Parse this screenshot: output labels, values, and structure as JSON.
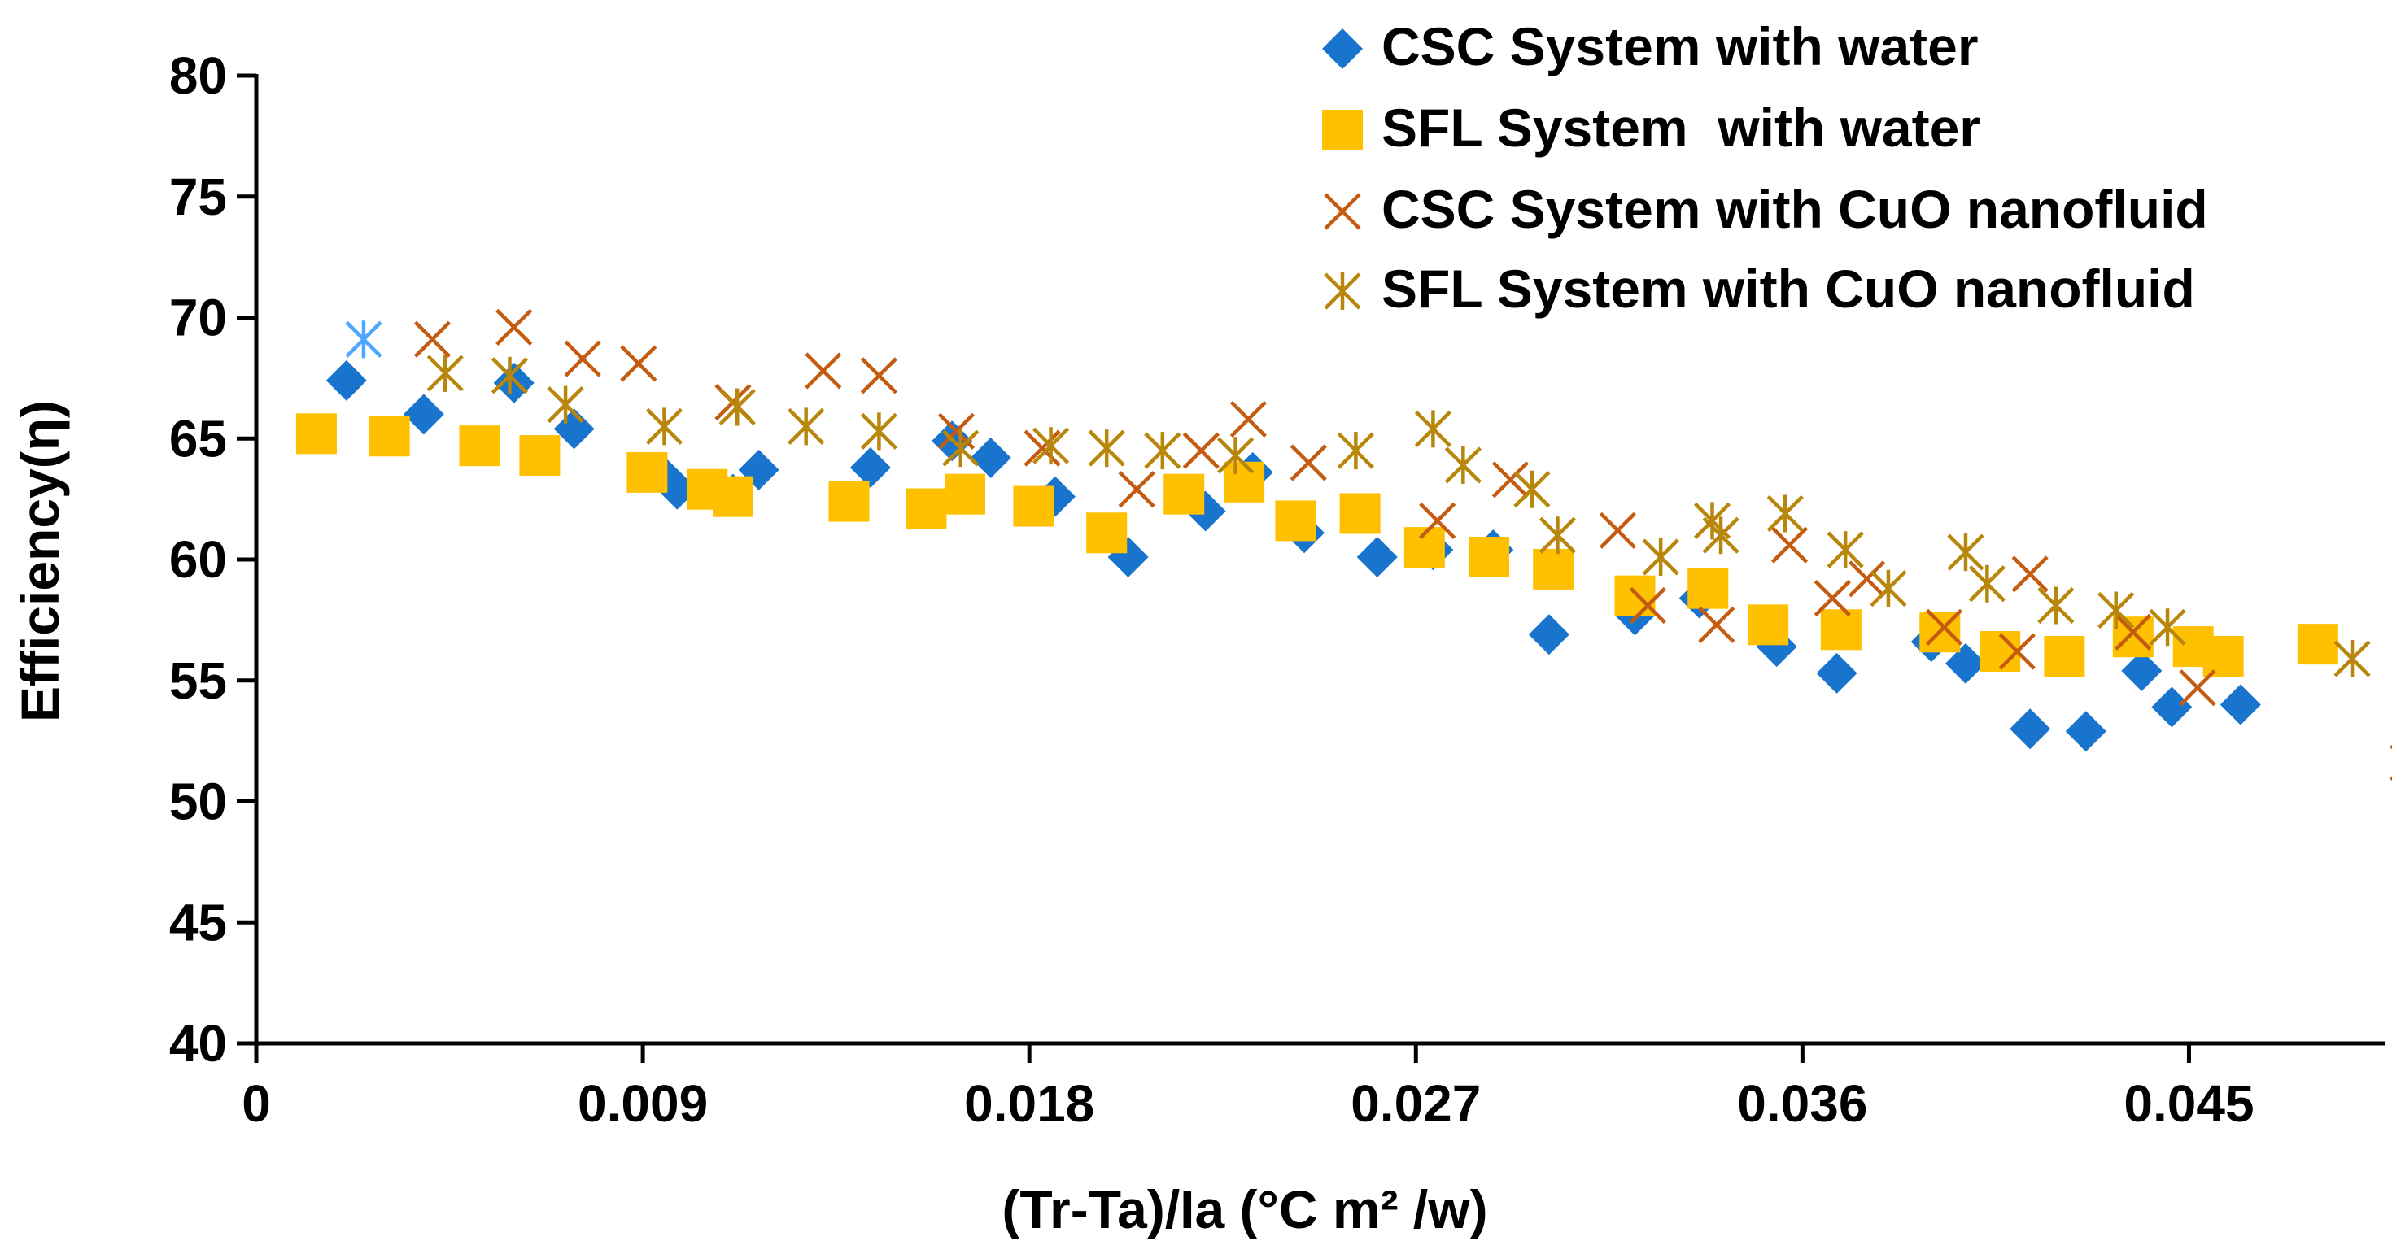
{
  "chart_data": {
    "type": "scatter",
    "title": "",
    "xlabel": "(Tr-Ta)/Ia (°C m² /w)",
    "ylabel": "Efficiency(η)",
    "xlim": [
      0,
      0.0495
    ],
    "ylim": [
      40,
      80
    ],
    "xticks": [
      0,
      0.009,
      0.018,
      0.027,
      0.036,
      0.045
    ],
    "xtick_labels": [
      "0",
      "0.009",
      "0.018",
      "0.027",
      "0.036",
      "0.045"
    ],
    "yticks": [
      40,
      45,
      50,
      55,
      60,
      65,
      70,
      75,
      80
    ],
    "ytick_labels": [
      "40",
      "45",
      "50",
      "55",
      "60",
      "65",
      "70",
      "75",
      "80"
    ],
    "grid": false,
    "legend_position": "top-right",
    "series": [
      {
        "name": "CSC System with water",
        "marker": "diamond",
        "color": "#1874CD",
        "points": [
          [
            0.0021,
            67.4
          ],
          [
            0.0039,
            66.0
          ],
          [
            0.006,
            67.3
          ],
          [
            0.0074,
            65.4
          ],
          [
            0.0094,
            63.6
          ],
          [
            0.0098,
            62.9
          ],
          [
            0.0111,
            62.7
          ],
          [
            0.0117,
            63.7
          ],
          [
            0.0143,
            63.8
          ],
          [
            0.0162,
            64.9
          ],
          [
            0.0171,
            64.2
          ],
          [
            0.0186,
            62.6
          ],
          [
            0.0203,
            60.1
          ],
          [
            0.0221,
            62.0
          ],
          [
            0.0232,
            63.6
          ],
          [
            0.0244,
            61.1
          ],
          [
            0.0261,
            60.1
          ],
          [
            0.0274,
            60.4
          ],
          [
            0.0288,
            60.4
          ],
          [
            0.0301,
            56.9
          ],
          [
            0.0321,
            57.7
          ],
          [
            0.0336,
            58.4
          ],
          [
            0.0354,
            56.4
          ],
          [
            0.0368,
            55.3
          ],
          [
            0.039,
            56.6
          ],
          [
            0.0398,
            55.7
          ],
          [
            0.0413,
            53.0
          ],
          [
            0.0426,
            52.9
          ],
          [
            0.0439,
            55.4
          ],
          [
            0.0446,
            53.9
          ],
          [
            0.0462,
            54.0
          ]
        ]
      },
      {
        "name": "SFL System  with water",
        "marker": "square",
        "color": "#FFC000",
        "points": [
          [
            0.0014,
            65.2
          ],
          [
            0.0031,
            65.1
          ],
          [
            0.0052,
            64.7
          ],
          [
            0.0066,
            64.3
          ],
          [
            0.0091,
            63.6
          ],
          [
            0.0105,
            62.9
          ],
          [
            0.0111,
            62.6
          ],
          [
            0.0138,
            62.4
          ],
          [
            0.0156,
            62.1
          ],
          [
            0.0165,
            62.7
          ],
          [
            0.0181,
            62.2
          ],
          [
            0.0198,
            61.1
          ],
          [
            0.0216,
            62.7
          ],
          [
            0.023,
            63.2
          ],
          [
            0.0242,
            61.6
          ],
          [
            0.0257,
            61.9
          ],
          [
            0.0272,
            60.5
          ],
          [
            0.0287,
            60.1
          ],
          [
            0.0302,
            59.6
          ],
          [
            0.0321,
            58.5
          ],
          [
            0.0338,
            58.8
          ],
          [
            0.0352,
            57.3
          ],
          [
            0.0369,
            57.1
          ],
          [
            0.0392,
            57.0
          ],
          [
            0.0406,
            56.2
          ],
          [
            0.0421,
            56.0
          ],
          [
            0.0437,
            56.8
          ],
          [
            0.0451,
            56.4
          ],
          [
            0.0458,
            56.0
          ],
          [
            0.048,
            56.5
          ]
        ]
      },
      {
        "name": "CSC System with CuO nanofluid",
        "marker": "x",
        "color": "#C55A11",
        "points": [
          [
            0.0041,
            69.1
          ],
          [
            0.006,
            69.6
          ],
          [
            0.0076,
            68.3
          ],
          [
            0.0089,
            68.1
          ],
          [
            0.0111,
            66.5
          ],
          [
            0.0132,
            67.8
          ],
          [
            0.0145,
            67.6
          ],
          [
            0.0163,
            65.3
          ],
          [
            0.0183,
            64.6
          ],
          [
            0.0205,
            62.9
          ],
          [
            0.022,
            64.5
          ],
          [
            0.0231,
            65.8
          ],
          [
            0.0245,
            64.0
          ],
          [
            0.0275,
            61.6
          ],
          [
            0.0292,
            63.3
          ],
          [
            0.0317,
            61.2
          ],
          [
            0.0324,
            58.1
          ],
          [
            0.034,
            57.3
          ],
          [
            0.0357,
            60.6
          ],
          [
            0.0367,
            58.4
          ],
          [
            0.0375,
            59.2
          ],
          [
            0.0393,
            57.2
          ],
          [
            0.041,
            56.2
          ],
          [
            0.0413,
            59.4
          ],
          [
            0.0437,
            57.0
          ],
          [
            0.0452,
            54.7
          ],
          [
            0.0501,
            51.6
          ]
        ]
      },
      {
        "name": "SFL System with CuO nanofluid",
        "marker": "asterisk",
        "color": "#B8860B",
        "points": [
          [
            0.0044,
            67.7
          ],
          [
            0.0059,
            67.6
          ],
          [
            0.0072,
            66.4
          ],
          [
            0.0095,
            65.5
          ],
          [
            0.0112,
            66.3
          ],
          [
            0.0128,
            65.5
          ],
          [
            0.0145,
            65.3
          ],
          [
            0.0164,
            64.6
          ],
          [
            0.0185,
            64.7
          ],
          [
            0.0198,
            64.6
          ],
          [
            0.0211,
            64.5
          ],
          [
            0.0228,
            64.3
          ],
          [
            0.0256,
            64.5
          ],
          [
            0.0274,
            65.4
          ],
          [
            0.0281,
            63.9
          ],
          [
            0.0297,
            62.9
          ],
          [
            0.0303,
            61.0
          ],
          [
            0.0327,
            60.1
          ],
          [
            0.0339,
            61.6
          ],
          [
            0.0341,
            61.0
          ],
          [
            0.0356,
            61.9
          ],
          [
            0.037,
            60.4
          ],
          [
            0.038,
            58.8
          ],
          [
            0.0398,
            60.3
          ],
          [
            0.0403,
            59.0
          ],
          [
            0.0419,
            58.1
          ],
          [
            0.0433,
            57.9
          ],
          [
            0.0445,
            57.2
          ],
          [
            0.0488,
            55.9
          ]
        ]
      },
      {
        "name": "",
        "marker": "asterisk",
        "color": "#4DA6FF",
        "points": [
          [
            0.0025,
            69.1
          ]
        ]
      }
    ]
  }
}
